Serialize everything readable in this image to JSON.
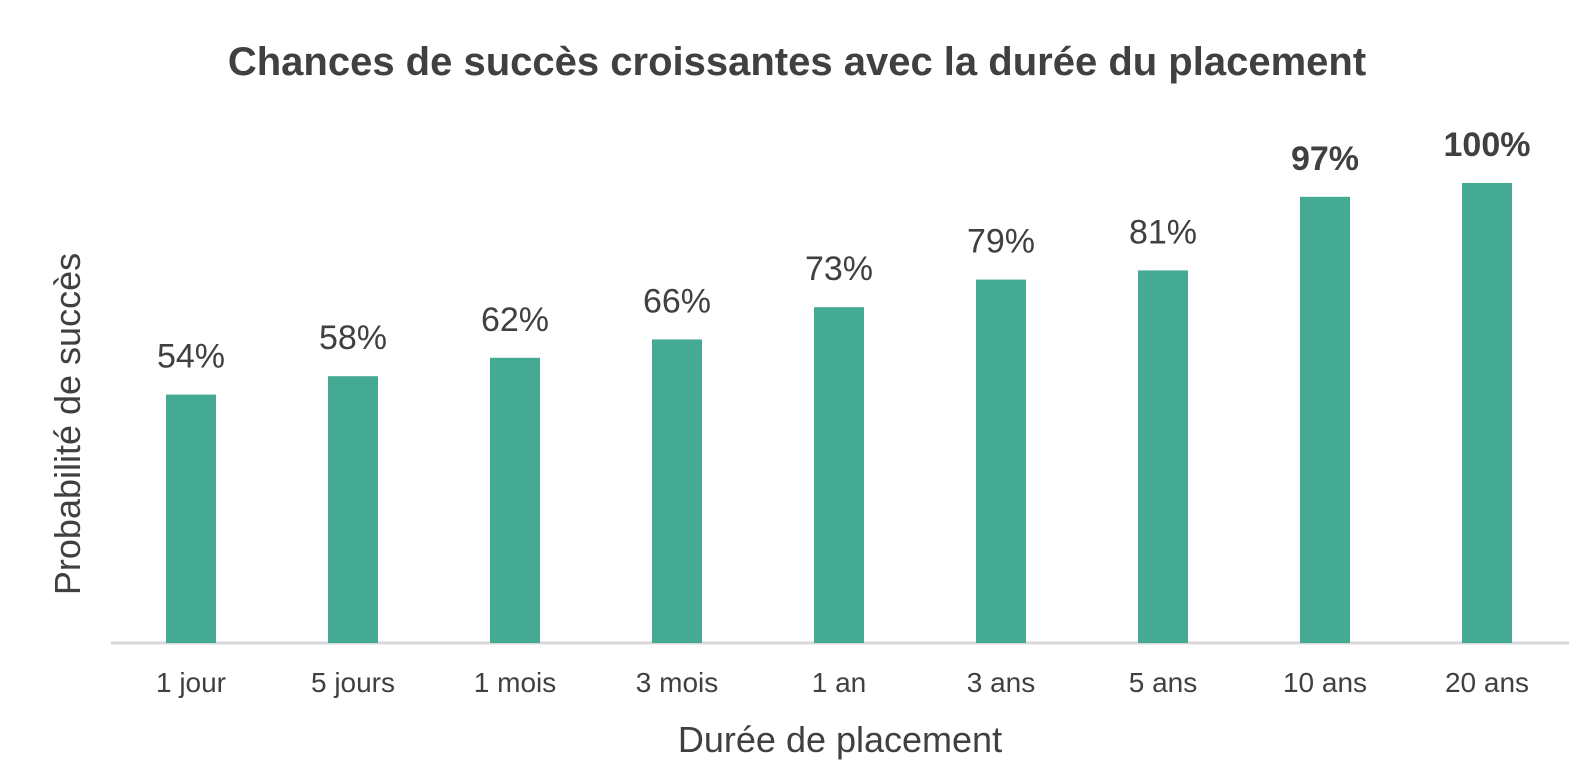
{
  "colors": {
    "bar": "#45aa94",
    "axis": "#d9d9d9",
    "text": "#404040"
  },
  "chart_data": {
    "type": "bar",
    "title": "Chances de succès croissantes avec la durée du placement",
    "xlabel": "Durée de placement",
    "ylabel": "Probabilité de succès",
    "categories": [
      "1 jour",
      "5 jours",
      "1 mois",
      "3 mois",
      "1 an",
      "3 ans",
      "5 ans",
      "10 ans",
      "20 ans"
    ],
    "values": [
      54,
      58,
      62,
      66,
      73,
      79,
      81,
      97,
      100
    ],
    "labels": [
      "54%",
      "58%",
      "62%",
      "66%",
      "73%",
      "79%",
      "81%",
      "97%",
      "100%"
    ],
    "bold_labels": [
      false,
      false,
      false,
      false,
      false,
      false,
      false,
      true,
      true
    ],
    "ylim": [
      0,
      100
    ],
    "grid": false,
    "legend": "none"
  }
}
